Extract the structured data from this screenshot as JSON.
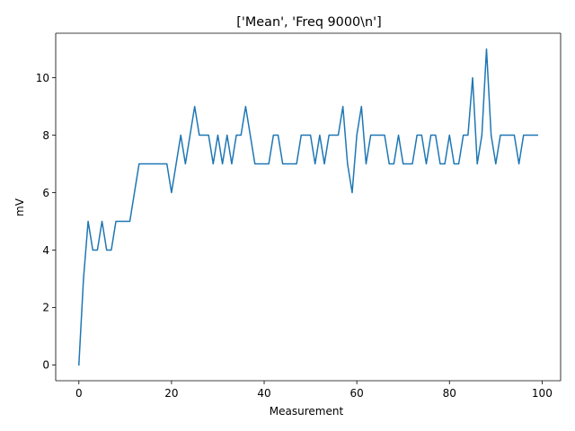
{
  "chart_data": {
    "type": "line",
    "title": "['Mean', 'Freq 9000\\n']",
    "xlabel": "Measurement",
    "ylabel": "mV",
    "xlim": [
      -5,
      104
    ],
    "ylim": [
      -0.55,
      11.55
    ],
    "xticks": [
      0,
      20,
      40,
      60,
      80,
      100
    ],
    "yticks": [
      0,
      2,
      4,
      6,
      8,
      10
    ],
    "grid": false,
    "series": [
      {
        "color": "#1f77b4",
        "x": [
          0,
          1,
          2,
          3,
          4,
          5,
          6,
          7,
          8,
          9,
          10,
          11,
          12,
          13,
          14,
          15,
          16,
          17,
          18,
          19,
          20,
          21,
          22,
          23,
          24,
          25,
          26,
          27,
          28,
          29,
          30,
          31,
          32,
          33,
          34,
          35,
          36,
          37,
          38,
          39,
          40,
          41,
          42,
          43,
          44,
          45,
          46,
          47,
          48,
          49,
          50,
          51,
          52,
          53,
          54,
          55,
          56,
          57,
          58,
          59,
          60,
          61,
          62,
          63,
          64,
          65,
          66,
          67,
          68,
          69,
          70,
          71,
          72,
          73,
          74,
          75,
          76,
          77,
          78,
          79,
          80,
          81,
          82,
          83,
          84,
          85,
          86,
          87,
          88,
          89,
          90,
          91,
          92,
          93,
          94,
          95,
          96,
          97,
          98,
          99
        ],
        "y": [
          0,
          3,
          5,
          4,
          4,
          5,
          4,
          4,
          5,
          5,
          5,
          5,
          6,
          7,
          7,
          7,
          7,
          7,
          7,
          7,
          6,
          7,
          8,
          7,
          8,
          9,
          8,
          8,
          8,
          7,
          8,
          7,
          8,
          7,
          8,
          8,
          9,
          8,
          7,
          7,
          7,
          7,
          8,
          8,
          7,
          7,
          7,
          7,
          8,
          8,
          8,
          7,
          8,
          7,
          8,
          8,
          8,
          9,
          7,
          6,
          8,
          9,
          7,
          8,
          8,
          8,
          8,
          7,
          7,
          8,
          7,
          7,
          7,
          8,
          8,
          7,
          8,
          8,
          7,
          7,
          8,
          7,
          7,
          8,
          8,
          10,
          7,
          8,
          11,
          8,
          7,
          8,
          8,
          8,
          8,
          7,
          8,
          8,
          8,
          8
        ]
      }
    ]
  }
}
